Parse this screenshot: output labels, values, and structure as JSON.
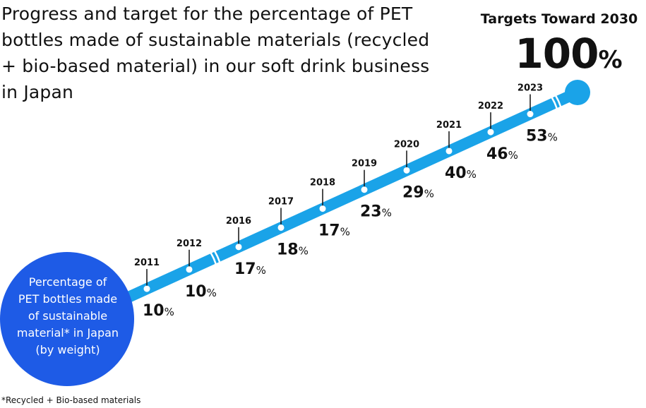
{
  "title": "Progress and target for the percentage of PET bottles made of sustainable materials (recycled + bio-based material) in our soft drink business in Japan",
  "target": {
    "heading": "Targets Toward 2030",
    "value": "100",
    "unit": "%"
  },
  "circle_label": "Percentage of\nPET bottles made\nof sustainable\nmaterial* in Japan\n(by weight)",
  "footnote": "*Recycled + Bio-based materials",
  "colors": {
    "band": "#1aa3e8",
    "circle": "#1e5be6",
    "text": "#111111"
  },
  "chart_data": {
    "type": "line",
    "unit": "%",
    "x": [
      "2011",
      "2012",
      "2016",
      "2017",
      "2018",
      "2019",
      "2020",
      "2021",
      "2022",
      "2023"
    ],
    "values": [
      10,
      10,
      17,
      18,
      17,
      23,
      29,
      40,
      46,
      53
    ],
    "target": {
      "year": "2030",
      "value": 100
    }
  }
}
